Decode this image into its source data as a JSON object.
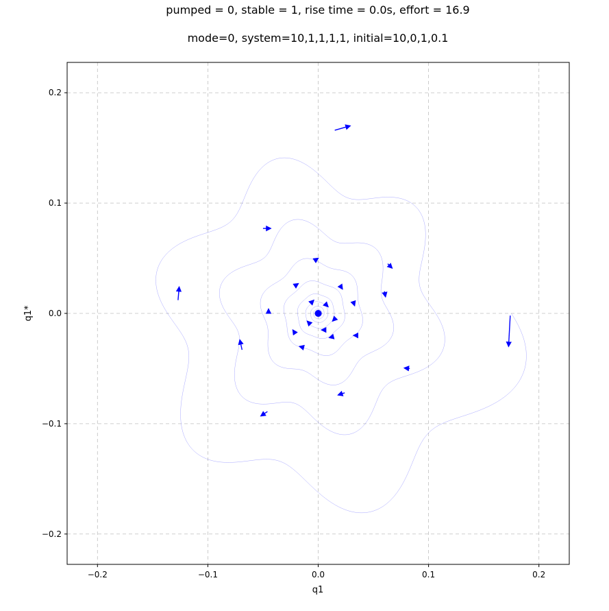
{
  "chart_data": {
    "type": "line",
    "title": "pumped = 0, stable = 1, rise time = 0.0s, effort = 16.9",
    "subtitle": "mode=0, system=10,1,1,1,1, initial=10,0,1,0.1",
    "xlabel": "q1",
    "ylabel": "q1*",
    "xlim": [
      -0.2275,
      0.2275
    ],
    "ylim": [
      -0.2275,
      0.2275
    ],
    "xticks": [
      -0.2,
      -0.1,
      0.0,
      0.1,
      0.2
    ],
    "xtick_labels": [
      "−0.2",
      "−0.1",
      "0.0",
      "0.1",
      "0.2"
    ],
    "yticks": [
      -0.2,
      -0.1,
      0.0,
      0.1,
      0.2
    ],
    "ytick_labels": [
      "−0.2",
      "−0.1",
      "0.0",
      "0.1",
      "0.2"
    ],
    "grid": true,
    "line_color": "#0000ff",
    "spiral": {
      "start_radius": 0.175,
      "end_radius": 0.002,
      "turns": 9,
      "wobble_amplitude": 0.022,
      "wobble_frequency": 6
    },
    "arrows": [
      {
        "x": 0.174,
        "y": -0.002,
        "dx": -0.0015,
        "dy": -0.028
      },
      {
        "x": 0.083,
        "y": -0.05,
        "dx": -0.005,
        "dy": 0.0005
      },
      {
        "x": 0.024,
        "y": -0.072,
        "dx": -0.006,
        "dy": -0.002
      },
      {
        "x": -0.046,
        "y": -0.089,
        "dx": -0.006,
        "dy": -0.004
      },
      {
        "x": -0.069,
        "y": -0.033,
        "dx": -0.002,
        "dy": 0.009
      },
      {
        "x": -0.127,
        "y": 0.012,
        "dx": 0.001,
        "dy": 0.012
      },
      {
        "x": -0.05,
        "y": 0.077,
        "dx": 0.007,
        "dy": 0.0
      },
      {
        "x": 0.015,
        "y": 0.166,
        "dx": 0.014,
        "dy": 0.004
      },
      {
        "x": 0.063,
        "y": 0.045,
        "dx": 0.004,
        "dy": -0.004
      },
      {
        "x": 0.06,
        "y": 0.02,
        "dx": 0.001,
        "dy": -0.005
      },
      {
        "x": 0.036,
        "y": -0.02,
        "dx": -0.004,
        "dy": 0.0
      },
      {
        "x": 0.014,
        "y": -0.021,
        "dx": -0.004,
        "dy": -0.001
      },
      {
        "x": -0.013,
        "y": -0.031,
        "dx": -0.004,
        "dy": 0.001
      },
      {
        "x": -0.021,
        "y": -0.018,
        "dx": -0.002,
        "dy": 0.003
      },
      {
        "x": -0.045,
        "y": 0.0,
        "dx": 0.0,
        "dy": 0.004
      },
      {
        "x": -0.021,
        "y": 0.025,
        "dx": 0.003,
        "dy": 0.002
      },
      {
        "x": -0.003,
        "y": 0.048,
        "dx": 0.003,
        "dy": 0.002
      },
      {
        "x": 0.02,
        "y": 0.025,
        "dx": 0.002,
        "dy": -0.003
      },
      {
        "x": 0.032,
        "y": 0.01,
        "dx": 0.001,
        "dy": -0.003
      },
      {
        "x": 0.015,
        "y": -0.005,
        "dx": -0.002,
        "dy": -0.002
      },
      {
        "x": 0.006,
        "y": -0.015,
        "dx": -0.003,
        "dy": 0.0
      },
      {
        "x": -0.008,
        "y": -0.009,
        "dx": -0.002,
        "dy": 0.002
      },
      {
        "x": -0.006,
        "y": 0.01,
        "dx": 0.002,
        "dy": 0.002
      },
      {
        "x": 0.007,
        "y": 0.008,
        "dx": 0.002,
        "dy": -0.002
      }
    ]
  }
}
